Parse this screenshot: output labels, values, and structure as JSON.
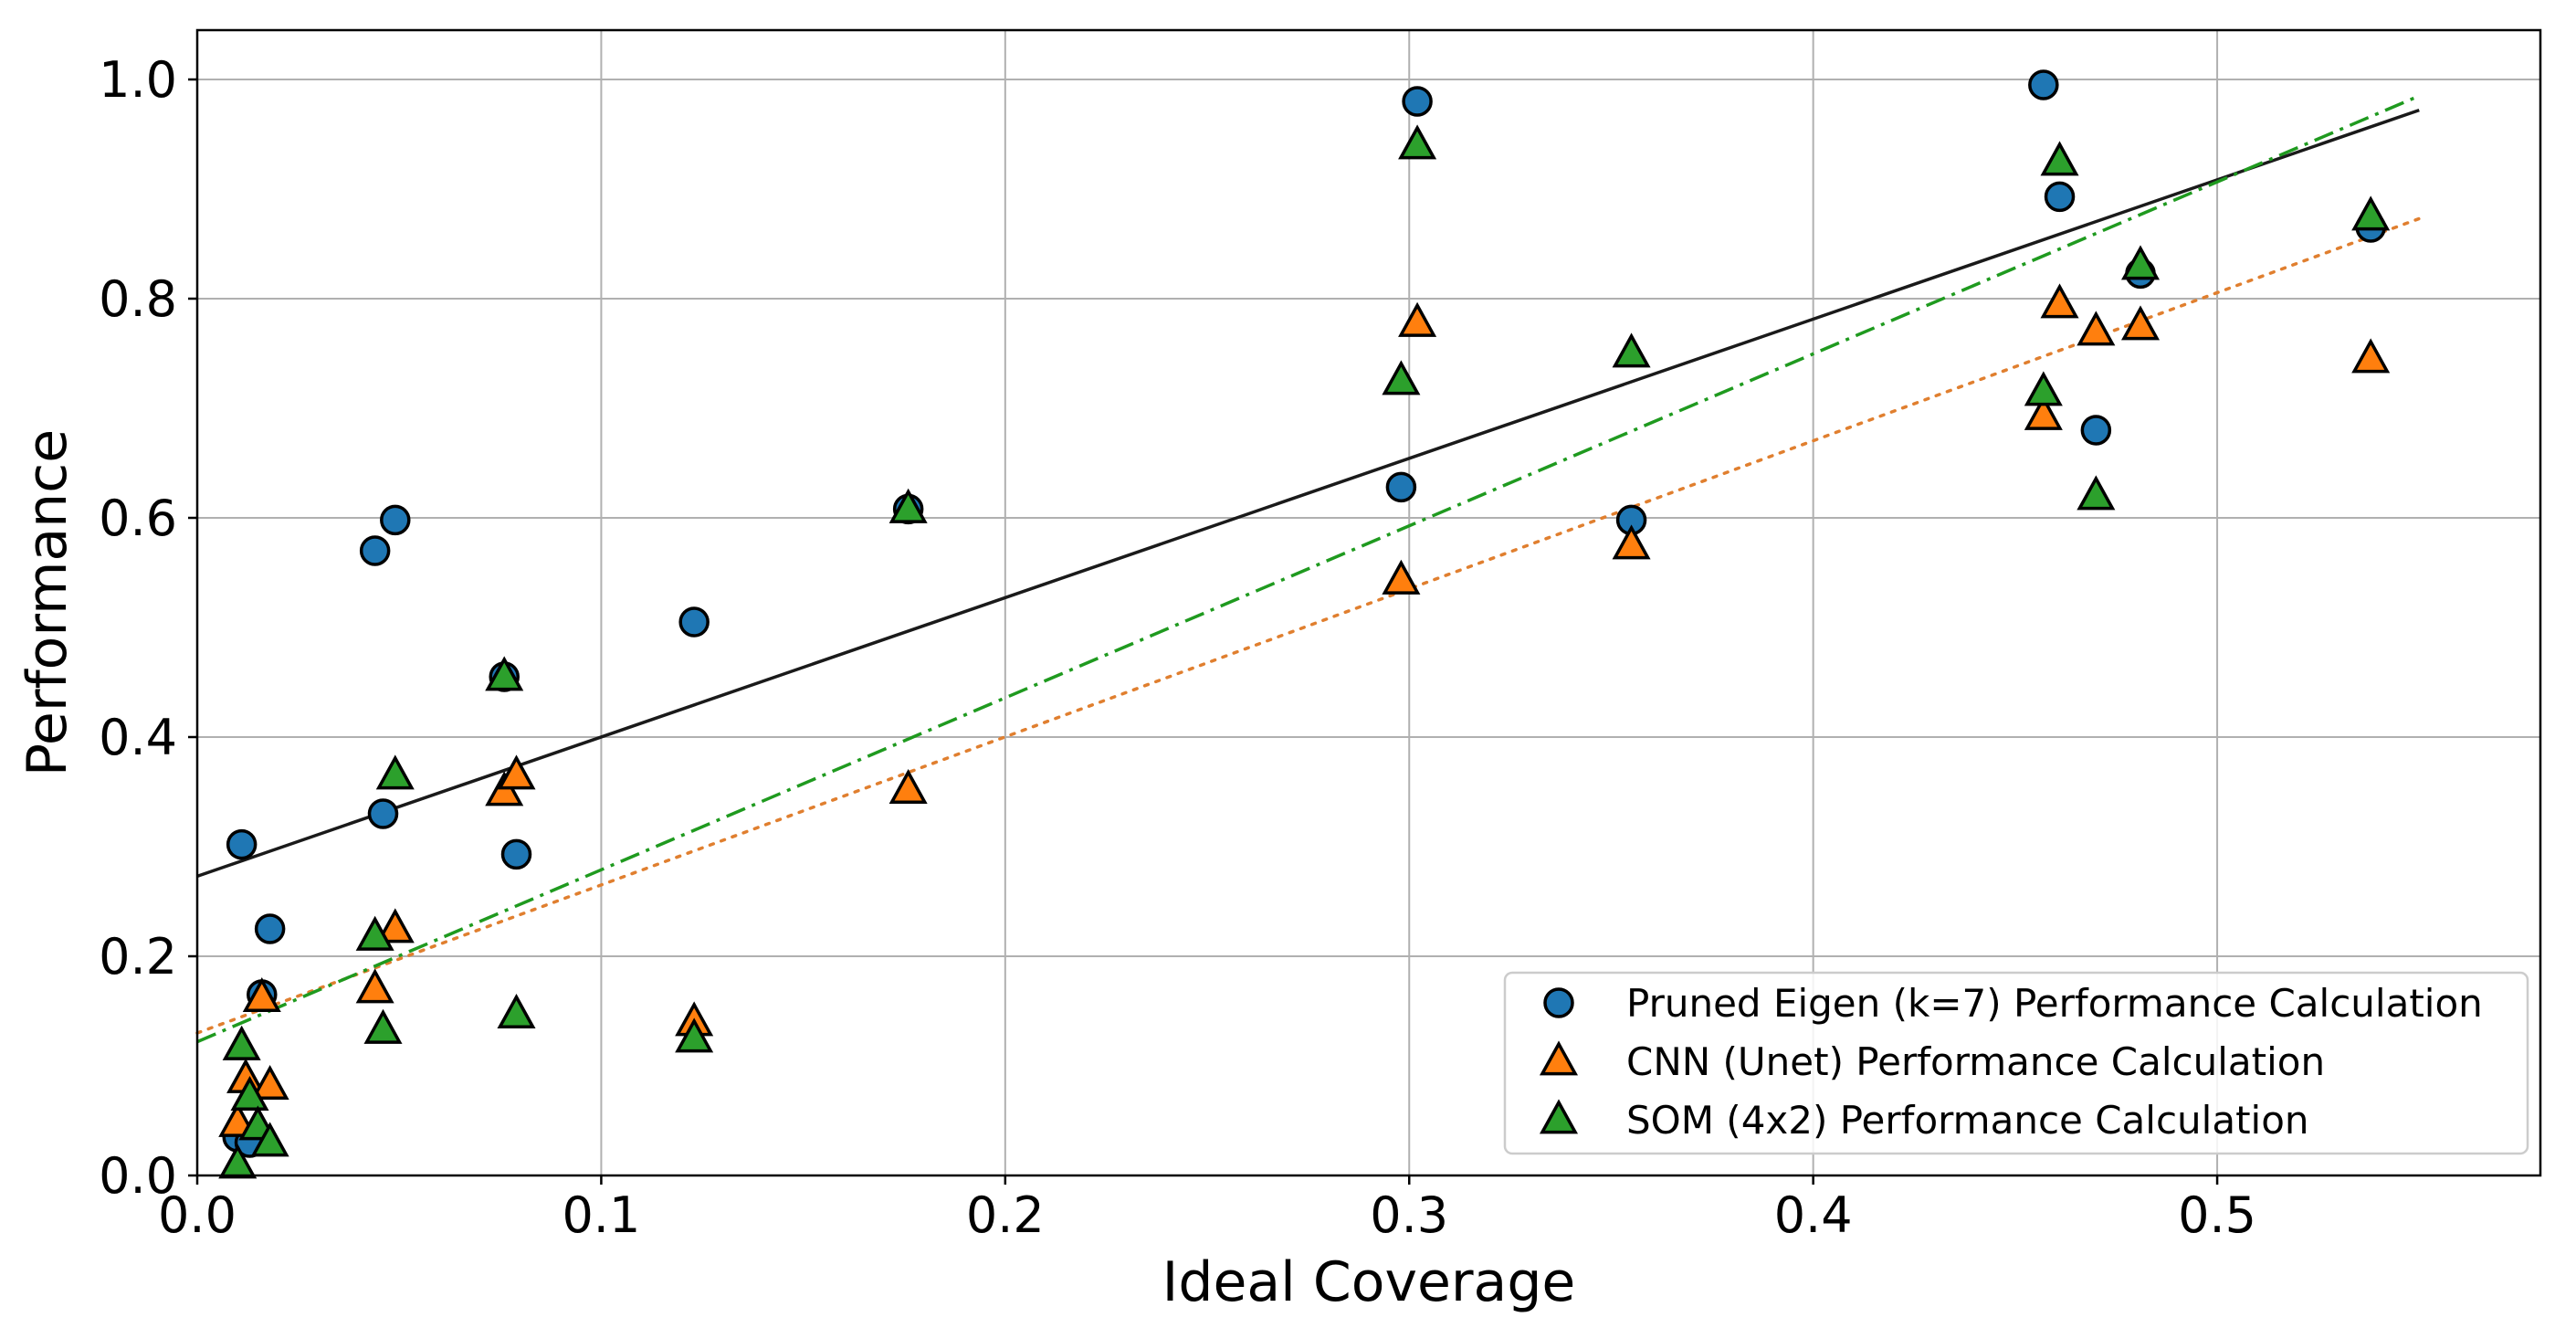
{
  "chart_data": {
    "type": "scatter",
    "title": "",
    "xlabel": "Ideal Coverage",
    "ylabel": "Performance",
    "xlim": [
      0.0,
      0.58
    ],
    "ylim": [
      0.0,
      1.045
    ],
    "xticks": [
      0.0,
      0.1,
      0.2,
      0.3,
      0.4,
      0.5
    ],
    "xtick_labels": [
      "0.0",
      "0.1",
      "0.2",
      "0.3",
      "0.4",
      "0.5"
    ],
    "yticks": [
      0.0,
      0.2,
      0.4,
      0.6,
      0.8,
      1.0
    ],
    "ytick_labels": [
      "0.0",
      "0.2",
      "0.4",
      "0.6",
      "0.8",
      "1.0"
    ],
    "grid": true,
    "legend_position": "lower-right",
    "series": [
      {
        "name": "Pruned Eigen (k=7) Performance Calculation",
        "marker": "circle",
        "color": "#1f77b4",
        "points": [
          [
            0.01,
            0.035
          ],
          [
            0.011,
            0.302
          ],
          [
            0.013,
            0.03
          ],
          [
            0.016,
            0.165
          ],
          [
            0.018,
            0.225
          ],
          [
            0.044,
            0.57
          ],
          [
            0.046,
            0.33
          ],
          [
            0.049,
            0.598
          ],
          [
            0.076,
            0.455
          ],
          [
            0.079,
            0.293
          ],
          [
            0.123,
            0.505
          ],
          [
            0.176,
            0.608
          ],
          [
            0.298,
            0.628
          ],
          [
            0.302,
            0.98
          ],
          [
            0.355,
            0.598
          ],
          [
            0.457,
            0.995
          ],
          [
            0.461,
            0.893
          ],
          [
            0.47,
            0.68
          ],
          [
            0.481,
            0.823
          ],
          [
            0.538,
            0.865
          ]
        ]
      },
      {
        "name": "CNN (Unet) Performance Calculation",
        "marker": "triangle",
        "color": "#ff7f0e",
        "points": [
          [
            0.01,
            0.048
          ],
          [
            0.012,
            0.088
          ],
          [
            0.016,
            0.162
          ],
          [
            0.018,
            0.082
          ],
          [
            0.044,
            0.17
          ],
          [
            0.049,
            0.225
          ],
          [
            0.076,
            0.35
          ],
          [
            0.079,
            0.365
          ],
          [
            0.123,
            0.14
          ],
          [
            0.176,
            0.352
          ],
          [
            0.298,
            0.543
          ],
          [
            0.302,
            0.778
          ],
          [
            0.355,
            0.575
          ],
          [
            0.457,
            0.693
          ],
          [
            0.461,
            0.795
          ],
          [
            0.47,
            0.77
          ],
          [
            0.481,
            0.775
          ],
          [
            0.538,
            0.745
          ]
        ]
      },
      {
        "name": "SOM (4x2) Performance Calculation",
        "marker": "triangle",
        "color": "#2ca02c",
        "points": [
          [
            0.01,
            0.01
          ],
          [
            0.011,
            0.118
          ],
          [
            0.013,
            0.072
          ],
          [
            0.015,
            0.045
          ],
          [
            0.018,
            0.03
          ],
          [
            0.044,
            0.218
          ],
          [
            0.046,
            0.133
          ],
          [
            0.049,
            0.365
          ],
          [
            0.076,
            0.455
          ],
          [
            0.079,
            0.147
          ],
          [
            0.123,
            0.125
          ],
          [
            0.176,
            0.608
          ],
          [
            0.298,
            0.725
          ],
          [
            0.302,
            0.94
          ],
          [
            0.355,
            0.75
          ],
          [
            0.457,
            0.715
          ],
          [
            0.461,
            0.925
          ],
          [
            0.47,
            0.62
          ],
          [
            0.481,
            0.83
          ],
          [
            0.538,
            0.875
          ]
        ]
      }
    ],
    "trend_lines": [
      {
        "series": "Pruned Eigen (k=7) Performance Calculation",
        "style": "solid",
        "color": "#1a1a1a",
        "x": [
          0.0,
          0.55
        ],
        "y": [
          0.273,
          0.972
        ]
      },
      {
        "series": "CNN (Unet) Performance Calculation",
        "style": "dotted",
        "color": "#e07f2f",
        "x": [
          0.0,
          0.55
        ],
        "y": [
          0.13,
          0.873
        ]
      },
      {
        "series": "SOM (4x2) Performance Calculation",
        "style": "dashdot",
        "color": "#1f9a1f",
        "x": [
          0.0,
          0.55
        ],
        "y": [
          0.122,
          0.985
        ]
      }
    ]
  }
}
